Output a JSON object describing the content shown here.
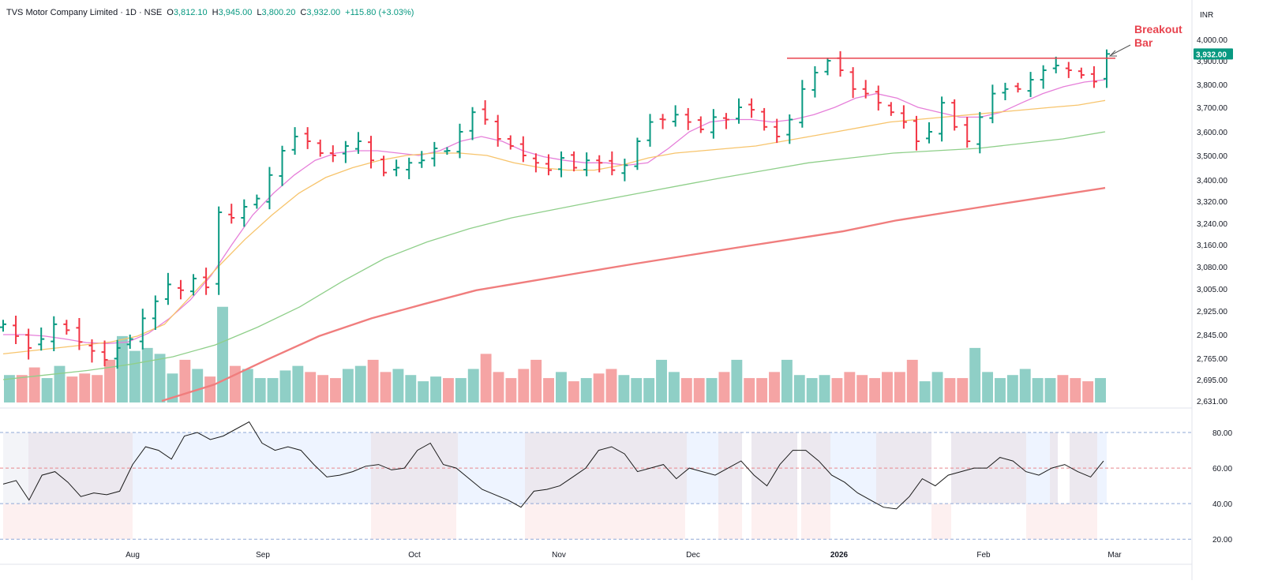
{
  "header": {
    "symbol": "TVS Motor Company Limited",
    "interval": "1D",
    "exchange": "NSE",
    "open_label": "O",
    "open": "3,812.10",
    "high_label": "H",
    "high": "3,945.00",
    "low_label": "L",
    "low": "3,800.20",
    "close_label": "C",
    "close": "3,932.00",
    "change": "+115.80 (+3.03%)"
  },
  "currency": "INR",
  "last_price_tag": "3,932.00",
  "annotation": {
    "line1": "Breakout",
    "line2": "Bar"
  },
  "colors": {
    "up": "#089981",
    "down": "#f23645",
    "vol_up": "#8fcfc6",
    "vol_down": "#f5a4a4",
    "sma_short": "#e67fd9",
    "sma_mid": "#f7c46c",
    "sma_long": "#8fcf8a",
    "sma_200": "#f07d7d",
    "resistance": "#e8434e",
    "annotation": "#e8434e",
    "rsi": "#1a1a1a",
    "rsi_band_normal": "#f0f4fb",
    "rsi_band_bull": "#eef4ff"
  },
  "chart_data": [
    {
      "type": "ohlc",
      "y_axis_ticks": [
        "4,000.00",
        "3,900.00",
        "3,800.00",
        "3,700.00",
        "3,600.00",
        "3,500.00",
        "3,400.00",
        "3,320.00",
        "3,240.00",
        "3,160.00",
        "3,080.00",
        "3,005.00",
        "2,925.00",
        "2,845.00",
        "2,765.00",
        "2,695.00",
        "2,631.00"
      ],
      "x_axis_ticks": [
        "Aug",
        "Sep",
        "Oct",
        "Nov",
        "Dec",
        "2026",
        "Feb",
        "Mar"
      ],
      "ylim": [
        2631,
        4040
      ],
      "resistance_level": 3912,
      "ohlc_anchor_closes": [
        2880,
        2840,
        2800,
        2830,
        2880,
        2860,
        2820,
        2790,
        2760,
        2800,
        2830,
        2900,
        2960,
        3020,
        3000,
        3040,
        3010,
        3280,
        3260,
        3300,
        3330,
        3420,
        3520,
        3580,
        3560,
        3510,
        3500,
        3540,
        3560,
        3480,
        3430,
        3450,
        3470,
        3480,
        3530,
        3520,
        3600,
        3680,
        3650,
        3570,
        3540,
        3500,
        3470,
        3440,
        3490,
        3450,
        3480,
        3470,
        3440,
        3460,
        3560,
        3640,
        3650,
        3670,
        3640,
        3610,
        3660,
        3650,
        3700,
        3690,
        3620,
        3580,
        3650,
        3780,
        3850,
        3900,
        3860,
        3780,
        3760,
        3720,
        3680,
        3640,
        3560,
        3600,
        3720,
        3620,
        3560,
        3660,
        3760,
        3780,
        3780,
        3820,
        3860,
        3880,
        3860,
        3840,
        3812,
        3932
      ],
      "volume_anchors": [
        2710,
        2710,
        2735,
        2700,
        2740,
        2705,
        2715,
        2710,
        2760,
        2840,
        2790,
        2800,
        2780,
        2715,
        2760,
        2730,
        2705,
        2940,
        2740,
        2730,
        2700,
        2700,
        2725,
        2740,
        2720,
        2710,
        2700,
        2730,
        2740,
        2760,
        2720,
        2730,
        2710,
        2690,
        2705,
        2700,
        2700,
        2730,
        2780,
        2720,
        2700,
        2730,
        2760,
        2700,
        2720,
        2690,
        2700,
        2715,
        2730,
        2710,
        2700,
        2700,
        2760,
        2720,
        2700,
        2700,
        2700,
        2720,
        2760,
        2700,
        2700,
        2720,
        2760,
        2710,
        2700,
        2710,
        2700,
        2720,
        2710,
        2700,
        2720,
        2720,
        2760,
        2690,
        2720,
        2700,
        2700,
        2800,
        2720,
        2700,
        2710,
        2730,
        2700,
        2700,
        2710,
        2700,
        2690,
        2700
      ],
      "sma_series": [
        {
          "name": "",
          "anchors": [
            2845,
            2845,
            2840,
            2830,
            2818,
            2815,
            2820,
            2850,
            2900,
            2965,
            3050,
            3160,
            3270,
            3350,
            3420,
            3480,
            3510,
            3520,
            3520,
            3510,
            3500,
            3520,
            3560,
            3580,
            3560,
            3520,
            3495,
            3480,
            3470,
            3470,
            3460,
            3470,
            3530,
            3600,
            3640,
            3650,
            3650,
            3640,
            3650,
            3670,
            3700,
            3740,
            3760,
            3740,
            3700,
            3680,
            3660,
            3660,
            3680,
            3720,
            3760,
            3790,
            3810,
            3820
          ]
        },
        {
          "name": "",
          "anchors": [
            2780,
            2790,
            2800,
            2810,
            2820,
            2840,
            2880,
            2980,
            3080,
            3180,
            3270,
            3350,
            3410,
            3450,
            3480,
            3500,
            3510,
            3510,
            3500,
            3470,
            3450,
            3440,
            3440,
            3460,
            3490,
            3510,
            3520,
            3530,
            3540,
            3560,
            3580,
            3600,
            3620,
            3640,
            3650,
            3660,
            3670,
            3680,
            3690,
            3700,
            3710,
            3730
          ]
        },
        {
          "name": "",
          "anchors": [
            2695,
            2710,
            2725,
            2745,
            2770,
            2810,
            2870,
            2940,
            3030,
            3110,
            3170,
            3220,
            3260,
            3290,
            3320,
            3350,
            3380,
            3410,
            3440,
            3470,
            3490,
            3510,
            3520,
            3530,
            3550,
            3570,
            3600
          ]
        },
        {
          "name": "",
          "anchors": [
            2631,
            2680,
            2760,
            2840,
            2900,
            2950,
            3000,
            3030,
            3060,
            3090,
            3120,
            3150,
            3180,
            3210,
            3250,
            3280,
            3310,
            3340,
            3370
          ]
        }
      ]
    },
    {
      "type": "line",
      "y_axis_ticks": [
        "80.00",
        "60.00",
        "40.00",
        "20.00"
      ],
      "ylim": [
        17,
        88
      ],
      "levels": [
        80,
        60,
        40,
        20
      ],
      "rsi_anchors": [
        51,
        53,
        42,
        56,
        58,
        52,
        44,
        46,
        45,
        47,
        62,
        72,
        70,
        65,
        78,
        80,
        76,
        78,
        82,
        86,
        74,
        70,
        72,
        70,
        62,
        55,
        56,
        58,
        61,
        62,
        59,
        60,
        70,
        74,
        62,
        60,
        54,
        48,
        45,
        42,
        38,
        47,
        48,
        50,
        55,
        60,
        70,
        72,
        68,
        58,
        60,
        62,
        54,
        60,
        58,
        56,
        60,
        64,
        56,
        50,
        62,
        70,
        70,
        64,
        56,
        52,
        46,
        42,
        38,
        37,
        44,
        54,
        50,
        56,
        58,
        60,
        60,
        66,
        64,
        58,
        56,
        60,
        62,
        58,
        55,
        64
      ]
    }
  ]
}
